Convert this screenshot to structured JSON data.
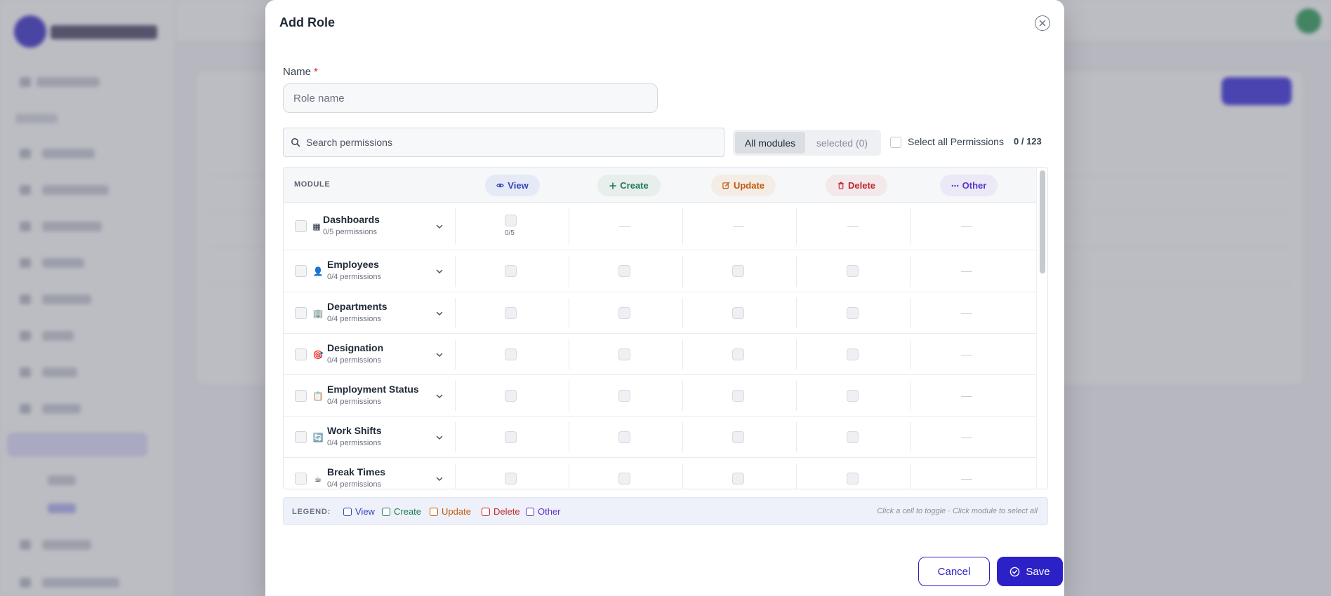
{
  "modal": {
    "title": "Add Role",
    "name_label": "Name",
    "name_required": "*",
    "name_placeholder": "Role name",
    "name_value": "",
    "search_placeholder": "Search permissions",
    "filter_all": "All modules",
    "filter_selected": "selected (0)",
    "select_all_label": "Select all Permissions",
    "selected_count": "0 / 123",
    "cancel_label": "Cancel",
    "save_label": "Save"
  },
  "table": {
    "module_header": "MODULE",
    "columns": [
      {
        "label": "View",
        "icon": "eye-icon",
        "color": "#3346b8"
      },
      {
        "label": "Create",
        "icon": "plus-icon",
        "color": "#1f7a55"
      },
      {
        "label": "Update",
        "icon": "edit-icon",
        "color": "#c2590c"
      },
      {
        "label": "Delete",
        "icon": "trash-icon",
        "color": "#c0262d"
      },
      {
        "label": "Other",
        "icon": "more-icon",
        "color": "#5b34c7"
      }
    ],
    "rows": [
      {
        "name": "Dashboards",
        "sub": "0/5 permissions",
        "icon": "grid-icon",
        "glyph": "▦",
        "cells": [
          "count",
          "dash",
          "dash",
          "dash",
          "dash"
        ],
        "count": "0/5"
      },
      {
        "name": "Employees",
        "sub": "0/4 permissions",
        "icon": "person-icon",
        "glyph": "👤",
        "cells": [
          "box",
          "box",
          "box",
          "box",
          "dash"
        ]
      },
      {
        "name": "Departments",
        "sub": "0/4 permissions",
        "icon": "building-icon",
        "glyph": "🏢",
        "cells": [
          "box",
          "box",
          "box",
          "box",
          "dash"
        ]
      },
      {
        "name": "Designation",
        "sub": "0/4 permissions",
        "icon": "target-icon",
        "glyph": "🎯",
        "cells": [
          "box",
          "box",
          "box",
          "box",
          "dash"
        ]
      },
      {
        "name": "Employment Status",
        "sub": "0/4 permissions",
        "icon": "clipboard-icon",
        "glyph": "📋",
        "cells": [
          "box",
          "box",
          "box",
          "box",
          "dash"
        ]
      },
      {
        "name": "Work Shifts",
        "sub": "0/4 permissions",
        "icon": "refresh-icon",
        "glyph": "🔄",
        "cells": [
          "box",
          "box",
          "box",
          "box",
          "dash"
        ]
      },
      {
        "name": "Break Times",
        "sub": "0/4 permissions",
        "icon": "coffee-icon",
        "glyph": "☕",
        "cells": [
          "box",
          "box",
          "box",
          "box",
          "dash"
        ]
      }
    ]
  },
  "legend": {
    "title": "LEGEND:",
    "items": [
      {
        "label": "View",
        "color": "#3346b8"
      },
      {
        "label": "Create",
        "color": "#1f7a55"
      },
      {
        "label": "Update",
        "color": "#c2590c"
      },
      {
        "label": "Delete",
        "color": "#c0262d"
      },
      {
        "label": "Other",
        "color": "#5b34c7"
      }
    ],
    "hint": "Click a cell to toggle · Click module to select all"
  }
}
